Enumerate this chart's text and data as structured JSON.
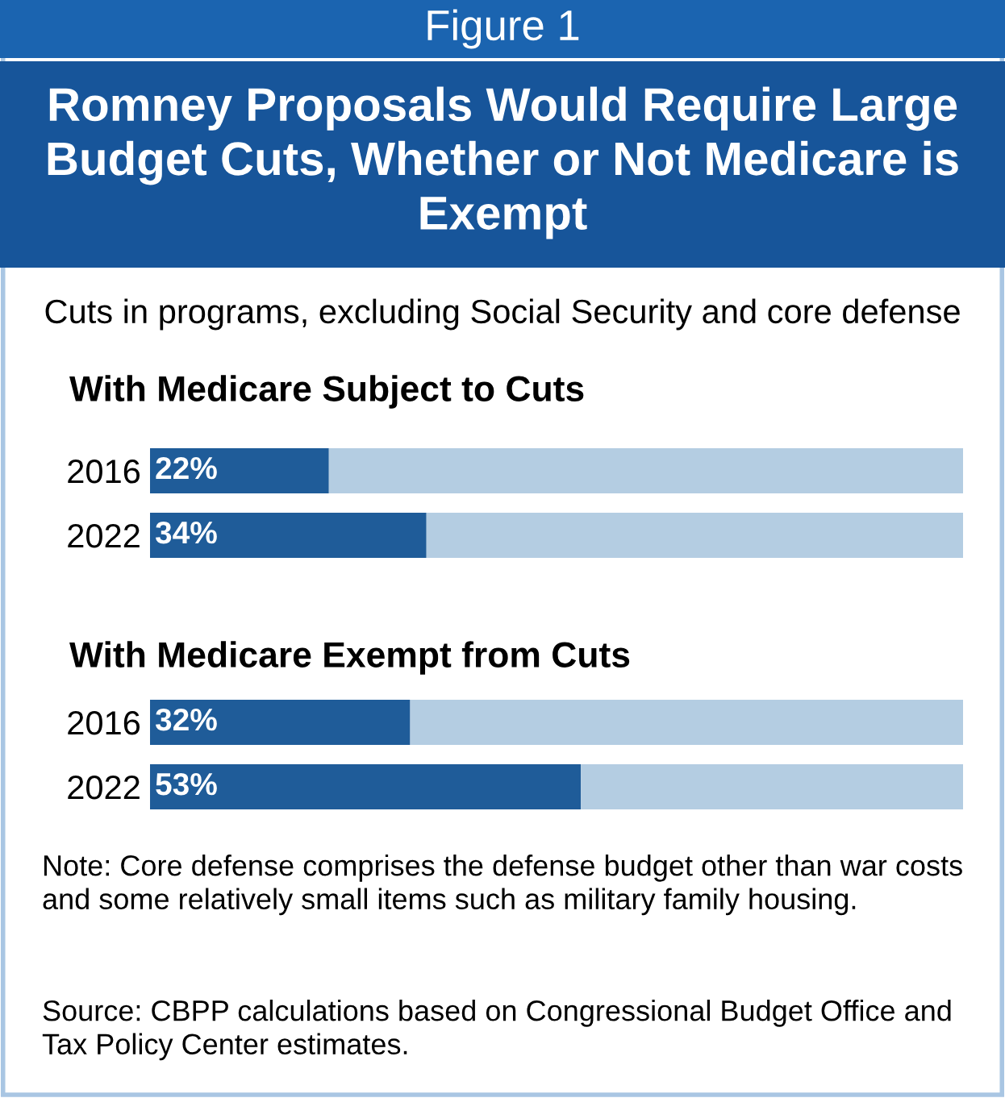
{
  "chart_data": [
    {
      "type": "bar",
      "orientation": "horizontal",
      "stacked": true,
      "title": "With Medicare Subject to Cuts",
      "categories": [
        "2016",
        "2022"
      ],
      "xlim": [
        0,
        100
      ],
      "tick_labels": "y",
      "grid": false,
      "legend": false,
      "series": [
        {
          "color": "#1f5c99",
          "values": [
            22,
            34
          ],
          "value_labels": [
            "22%",
            "34%"
          ]
        },
        {
          "color": "#b4cde2",
          "values": [
            78,
            66
          ]
        }
      ],
      "annotations": [
        "Figure 1",
        "Romney Proposals Would Require Large Budget Cuts, Whether or Not Medicare is Exempt",
        "Cuts in programs, excluding Social Security and core defense"
      ]
    },
    {
      "type": "bar",
      "orientation": "horizontal",
      "stacked": true,
      "title": "With Medicare Exempt from Cuts",
      "categories": [
        "2016",
        "2022"
      ],
      "xlim": [
        0,
        100
      ],
      "tick_labels": "y",
      "grid": false,
      "legend": false,
      "series": [
        {
          "color": "#1f5c99",
          "values": [
            32,
            53
          ],
          "value_labels": [
            "32%",
            "53%"
          ]
        },
        {
          "color": "#b4cde2",
          "values": [
            68,
            47
          ]
        }
      ],
      "annotations": [
        "Note: Core defense comprises the defense budget other than war costs and some relatively small items such as military family housing.",
        "Source: CBPP calculations based on Congressional Budget Office and Tax Policy Center estimates."
      ]
    }
  ]
}
